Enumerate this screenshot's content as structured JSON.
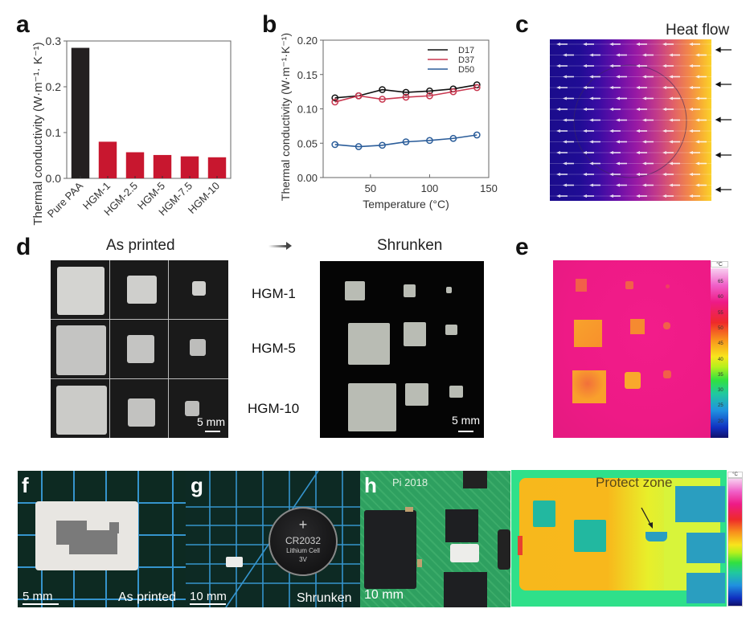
{
  "panels": {
    "a": {
      "label": "a"
    },
    "b": {
      "label": "b"
    },
    "c": {
      "label": "c",
      "title": "Heat flow"
    },
    "d": {
      "label": "d",
      "as_printed": "As printed",
      "shrunken": "Shrunken",
      "rows": [
        "HGM-1",
        "HGM-5",
        "HGM-10"
      ],
      "scale_left": "5 mm",
      "scale_right": "5 mm"
    },
    "e": {
      "label": "e",
      "colorbar_unit": "°C",
      "colorbar_ticks": [
        "65",
        "60",
        "55",
        "50",
        "45",
        "40",
        "35",
        "30",
        "25",
        "20"
      ]
    },
    "f": {
      "label": "f",
      "scale": "5 mm",
      "caption": "As printed"
    },
    "g": {
      "label": "g",
      "scale": "10 mm",
      "caption": "Shrunken",
      "battery": {
        "line1": "CR2032",
        "line2": "Lithium Cell",
        "line3": "3V",
        "symbol": "+"
      }
    },
    "h": {
      "label": "h",
      "scale": "10 mm",
      "board_text": "Pi 2018"
    },
    "i": {
      "annotation": "Protect zone",
      "colorbar_unit": "°C"
    }
  },
  "colors": {
    "black_bar": "#231f20",
    "red_bar": "#c8172f",
    "d17": "#111111",
    "d37": "#c8374f",
    "d50": "#2b5d9a"
  },
  "chart_data": [
    {
      "type": "bar",
      "title": "",
      "categories": [
        "Pure PAA",
        "HGM-1",
        "HGM-2.5",
        "HGM-5",
        "HGM-7.5",
        "HGM-10"
      ],
      "values": [
        0.285,
        0.08,
        0.057,
        0.051,
        0.048,
        0.046
      ],
      "xlabel": "",
      "ylabel": "Thermal conductivity (W·m⁻¹· K⁻¹)",
      "ylim": [
        0,
        0.3
      ],
      "yticks": [
        "0.0",
        "0.1",
        "0.2",
        "0.3"
      ],
      "grid": false,
      "legend": "none"
    },
    {
      "type": "line",
      "title": "",
      "x": [
        20,
        40,
        60,
        80,
        100,
        120,
        140
      ],
      "series": [
        {
          "name": "D17",
          "values": [
            0.116,
            0.119,
            0.128,
            0.124,
            0.126,
            0.129,
            0.135
          ]
        },
        {
          "name": "D37",
          "values": [
            0.11,
            0.119,
            0.114,
            0.117,
            0.119,
            0.125,
            0.131
          ]
        },
        {
          "name": "D50",
          "values": [
            0.048,
            0.045,
            0.047,
            0.052,
            0.054,
            0.057,
            0.062
          ]
        }
      ],
      "xlabel": "Temperature (°C)",
      "ylabel": "Thermal conductivity (W·m⁻¹·K⁻¹)",
      "xlim": [
        10,
        150
      ],
      "ylim": [
        0,
        0.2
      ],
      "xticks": [
        "50",
        "100",
        "150"
      ],
      "yticks": [
        "0.00",
        "0.05",
        "0.10",
        "0.15",
        "0.20"
      ],
      "grid": false,
      "legend": "top-right"
    }
  ]
}
